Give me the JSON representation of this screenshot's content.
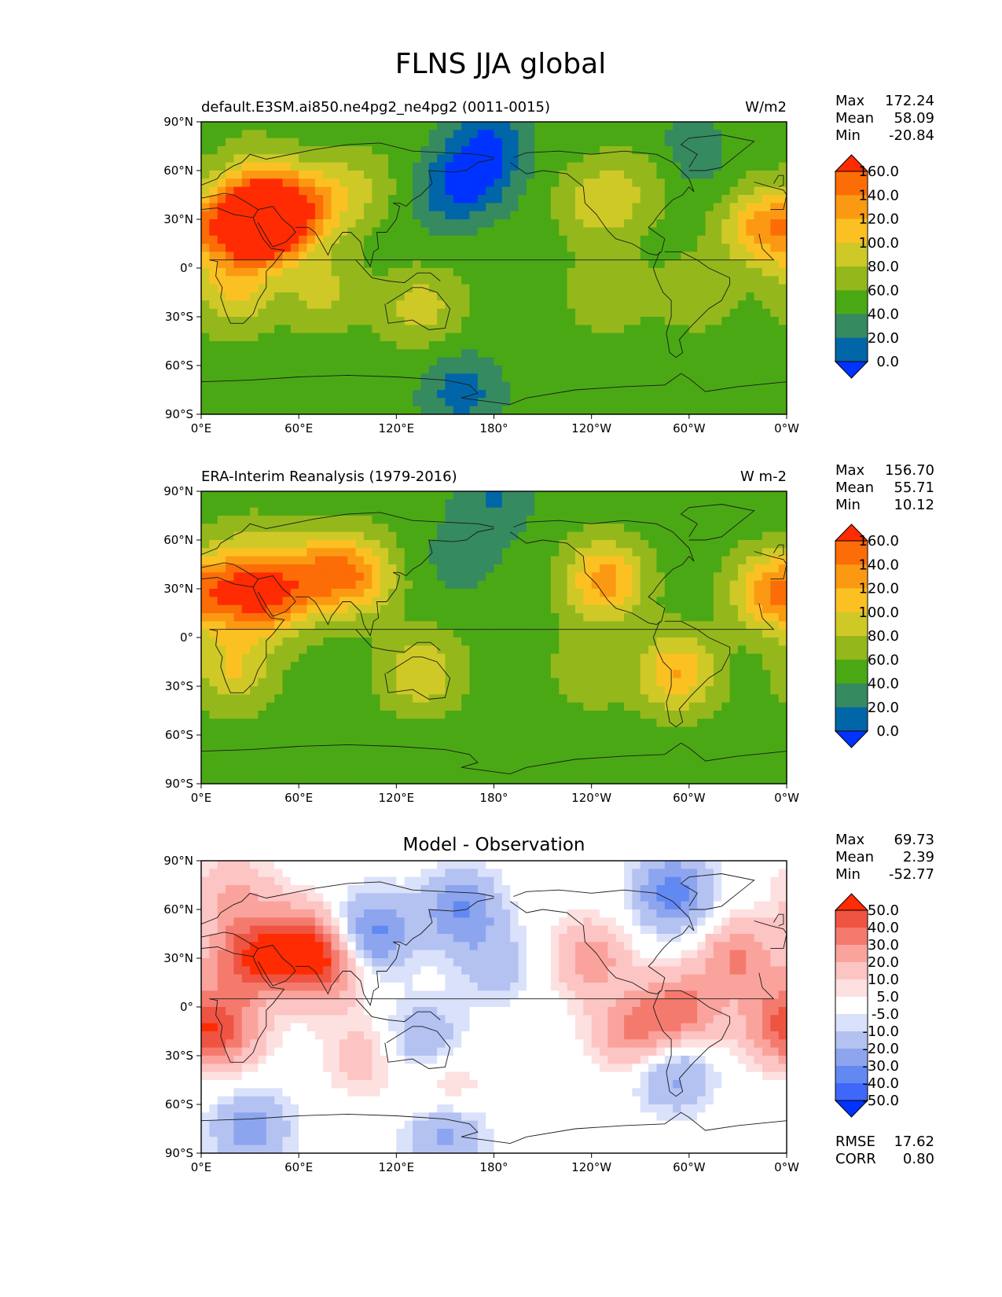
{
  "figure_title": "FLNS JJA global",
  "colors": {
    "seq": [
      "#0033ff",
      "#0066a8",
      "#358a60",
      "#4ba815",
      "#94b81c",
      "#cfc927",
      "#fbc123",
      "#fb9a12",
      "#fc6d07",
      "#ff2b02"
    ],
    "div": [
      "#0033ff",
      "#3f67fa",
      "#6289f2",
      "#8da5ef",
      "#b4c2f2",
      "#dae1fa",
      "#ffffff",
      "#fde0e0",
      "#fcc4c2",
      "#faa39d",
      "#f57a6e",
      "#ef5442",
      "#ff2b02"
    ],
    "ocean_seq": "#4ba815",
    "ocean_div": "#ffffff"
  },
  "chart_data": [
    {
      "type": "heatmap",
      "panel": "model",
      "title_left": "default.E3SM.ai850.ne4pg2_ne4pg2 (0011-0015)",
      "title_center": "",
      "units": "W/m2",
      "stats": [
        {
          "label": "Max",
          "value": "172.24"
        },
        {
          "label": "Mean",
          "value": "58.09"
        },
        {
          "label": "Min",
          "value": "-20.84"
        }
      ],
      "extra_stats": [],
      "colorbar_ticks": [
        "160.0",
        "140.0",
        "120.0",
        "100.0",
        "80.0",
        "60.0",
        "40.0",
        "20.0",
        "0.0"
      ],
      "colorbar_levels": [
        0,
        20,
        40,
        60,
        80,
        100,
        120,
        140,
        160
      ],
      "palette": "seq",
      "xlim": [
        0,
        360
      ],
      "ylim": [
        -90,
        90
      ],
      "xticks": [
        "0°E",
        "60°E",
        "120°E",
        "180°",
        "120°W",
        "60°W",
        "0°W"
      ],
      "yticks": [
        "90°N",
        "60°N",
        "30°N",
        "0°",
        "30°S",
        "60°S",
        "90°S"
      ],
      "field": [
        {
          "lon": 180,
          "lat": 86,
          "value": 20
        },
        {
          "lon": 40,
          "lat": 35,
          "value": 135
        },
        {
          "lon": 42,
          "lat": 27,
          "value": 165
        },
        {
          "lon": 20,
          "lat": 25,
          "value": 120
        },
        {
          "lon": 70,
          "lat": 40,
          "value": 110
        },
        {
          "lon": 30,
          "lat": 60,
          "value": 70
        },
        {
          "lon": 100,
          "lat": 50,
          "value": 75
        },
        {
          "lon": 20,
          "lat": -15,
          "value": 100
        },
        {
          "lon": 75,
          "lat": -15,
          "value": 85
        },
        {
          "lon": 135,
          "lat": -25,
          "value": 90
        },
        {
          "lon": 170,
          "lat": 60,
          "value": -5
        },
        {
          "lon": 150,
          "lat": 45,
          "value": 20
        },
        {
          "lon": 245,
          "lat": 40,
          "value": 95
        },
        {
          "lon": 275,
          "lat": 55,
          "value": 70
        },
        {
          "lon": 300,
          "lat": 70,
          "value": 25
        },
        {
          "lon": 345,
          "lat": 25,
          "value": 125
        },
        {
          "lon": 305,
          "lat": -15,
          "value": 75
        },
        {
          "lon": 160,
          "lat": -77,
          "value": 10
        },
        {
          "lon": 330,
          "lat": -80,
          "value": 40
        },
        {
          "lon": 250,
          "lat": -15,
          "value": 80
        },
        {
          "lon": 180,
          "lat": 0,
          "value": 55
        }
      ]
    },
    {
      "type": "heatmap",
      "panel": "reference",
      "title_left": "ERA-Interim Reanalysis (1979-2016)",
      "title_center": "",
      "units": "W m-2",
      "stats": [
        {
          "label": "Max",
          "value": "156.70"
        },
        {
          "label": "Mean",
          "value": "55.71"
        },
        {
          "label": "Min",
          "value": "10.12"
        }
      ],
      "extra_stats": [],
      "colorbar_ticks": [
        "160.0",
        "140.0",
        "120.0",
        "100.0",
        "80.0",
        "60.0",
        "40.0",
        "20.0",
        "0.0"
      ],
      "colorbar_levels": [
        0,
        20,
        40,
        60,
        80,
        100,
        120,
        140,
        160
      ],
      "palette": "seq",
      "xlim": [
        0,
        360
      ],
      "ylim": [
        -90,
        90
      ],
      "xticks": [
        "0°E",
        "60°E",
        "120°E",
        "180°",
        "120°W",
        "60°W",
        "0°W"
      ],
      "yticks": [
        "90°N",
        "60°N",
        "30°N",
        "0°",
        "30°S",
        "60°S",
        "90°S"
      ],
      "field": [
        {
          "lon": 180,
          "lat": 86,
          "value": 20
        },
        {
          "lon": 160,
          "lat": 50,
          "value": 30
        },
        {
          "lon": 20,
          "lat": 28,
          "value": 125
        },
        {
          "lon": 45,
          "lat": 25,
          "value": 130
        },
        {
          "lon": 95,
          "lat": 38,
          "value": 125
        },
        {
          "lon": 70,
          "lat": 40,
          "value": 110
        },
        {
          "lon": 20,
          "lat": -20,
          "value": 100
        },
        {
          "lon": 135,
          "lat": -22,
          "value": 100
        },
        {
          "lon": 248,
          "lat": 35,
          "value": 130
        },
        {
          "lon": 293,
          "lat": -22,
          "value": 120
        },
        {
          "lon": 350,
          "lat": 28,
          "value": 125
        },
        {
          "lon": 240,
          "lat": -20,
          "value": 75
        },
        {
          "lon": 30,
          "lat": 55,
          "value": 70
        },
        {
          "lon": 180,
          "lat": 0,
          "value": 55
        },
        {
          "lon": 200,
          "lat": -65,
          "value": 45
        }
      ]
    },
    {
      "type": "heatmap",
      "panel": "difference",
      "title_left": "",
      "title_center": "Model - Observation",
      "units": "",
      "stats": [
        {
          "label": "Max",
          "value": "69.73"
        },
        {
          "label": "Mean",
          "value": "2.39"
        },
        {
          "label": "Min",
          "value": "-52.77"
        }
      ],
      "extra_stats": [
        {
          "label": "RMSE",
          "value": "17.62"
        },
        {
          "label": "CORR",
          "value": "0.80"
        }
      ],
      "colorbar_ticks": [
        "50.0",
        "40.0",
        "30.0",
        "20.0",
        "10.0",
        "5.0",
        "-5.0",
        "-10.0",
        "-20.0",
        "-30.0",
        "-40.0",
        "-50.0"
      ],
      "colorbar_levels": [
        -50,
        -40,
        -30,
        -20,
        -10,
        -5,
        5,
        10,
        20,
        30,
        40,
        50
      ],
      "palette": "div",
      "xlim": [
        0,
        360
      ],
      "ylim": [
        -90,
        90
      ],
      "xticks": [
        "0°E",
        "60°E",
        "120°E",
        "180°",
        "120°W",
        "60°W",
        "0°W"
      ],
      "yticks": [
        "90°N",
        "60°N",
        "30°N",
        "0°",
        "30°S",
        "60°S",
        "90°S"
      ],
      "field": [
        {
          "lon": 30,
          "lat": 30,
          "value": 45
        },
        {
          "lon": 60,
          "lat": 40,
          "value": 35
        },
        {
          "lon": 20,
          "lat": 70,
          "value": 20
        },
        {
          "lon": 15,
          "lat": -15,
          "value": 30
        },
        {
          "lon": 105,
          "lat": 45,
          "value": -35
        },
        {
          "lon": 160,
          "lat": 60,
          "value": -30
        },
        {
          "lon": 180,
          "lat": 25,
          "value": -15
        },
        {
          "lon": 240,
          "lat": 30,
          "value": 25
        },
        {
          "lon": 265,
          "lat": -15,
          "value": 30
        },
        {
          "lon": 295,
          "lat": -3,
          "value": 35
        },
        {
          "lon": 330,
          "lat": 30,
          "value": 30
        },
        {
          "lon": 290,
          "lat": 70,
          "value": -35
        },
        {
          "lon": 135,
          "lat": -20,
          "value": -20
        },
        {
          "lon": 150,
          "lat": -55,
          "value": 20
        },
        {
          "lon": 100,
          "lat": -30,
          "value": 15
        },
        {
          "lon": 150,
          "lat": -75,
          "value": -30
        },
        {
          "lon": 30,
          "lat": -75,
          "value": -25
        },
        {
          "lon": 290,
          "lat": -40,
          "value": -25
        },
        {
          "lon": 75,
          "lat": 25,
          "value": 40
        },
        {
          "lon": 355,
          "lat": -10,
          "value": 30
        }
      ]
    }
  ]
}
